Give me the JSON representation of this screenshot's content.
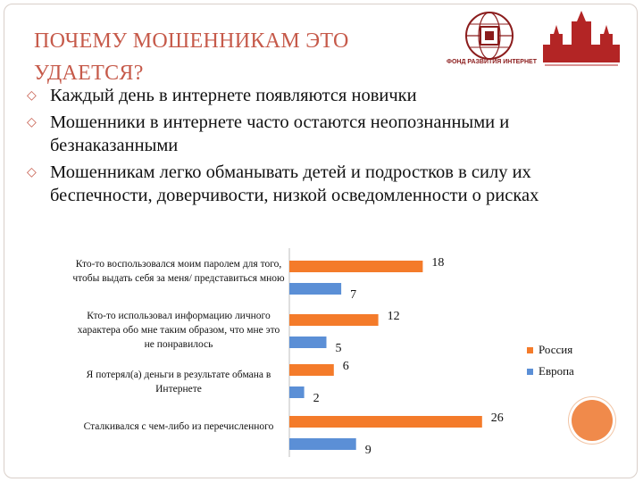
{
  "slide": {
    "title": "ПОЧЕМУ МОШЕННИКАМ ЭТО УДАЕТСЯ?",
    "logo_text": "ФОНД РАЗВИТИЯ ИНТЕРНЕТ",
    "bullets": [
      "Каждый день в интернете появляются новички",
      "Мошенники в интернете часто остаются неопознанными и безнаказанными",
      "Мошенникам легко обманывать детей и подростков в силу их беспечности, доверчивости, низкой осведомленности о рисках"
    ]
  },
  "colors": {
    "russia": "#f47b2a",
    "europe": "#5b8fd6",
    "title": "#c65a4a"
  },
  "chart_data": {
    "type": "bar",
    "orientation": "horizontal",
    "categories": [
      "Кто-то воспользовался моим паролем для того, чтобы выдать себя за меня/ представиться мною",
      "Кто-то использовал информацию личного характера обо мне таким образом, что мне это не понравилось",
      "Я потерял(а) деньги в результате обмана в Интернете",
      "Сталкивался с чем-либо из перечисленного"
    ],
    "series": [
      {
        "name": "Россия",
        "values": [
          18,
          12,
          6,
          26
        ]
      },
      {
        "name": "Европа",
        "values": [
          7,
          5,
          2,
          9
        ]
      }
    ],
    "xlim": [
      0,
      30
    ],
    "legend": "right",
    "grid": false
  }
}
